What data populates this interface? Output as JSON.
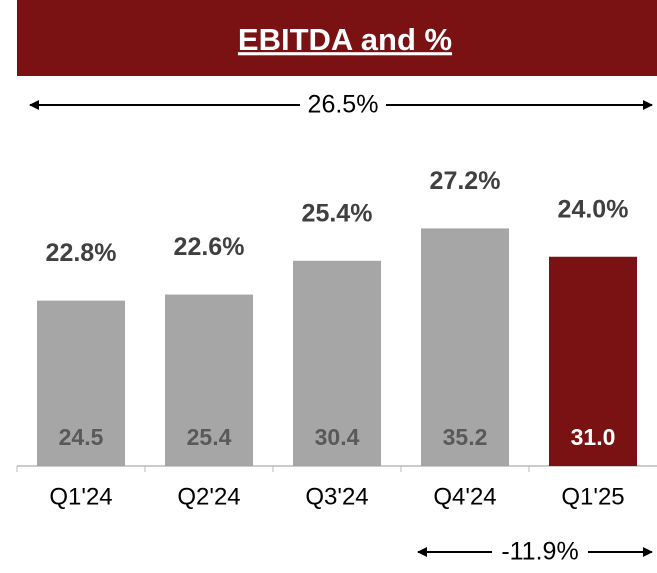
{
  "chart_data": {
    "type": "bar",
    "title": "EBITDA and %",
    "categories": [
      "Q1'24",
      "Q2'24",
      "Q3'24",
      "Q4'24",
      "Q1'25"
    ],
    "values": [
      24.5,
      25.4,
      30.4,
      35.2,
      31.0
    ],
    "value_labels": [
      "24.5",
      "25.4",
      "30.4",
      "35.2",
      "31.0"
    ],
    "margin_labels": [
      "22.8%",
      "22.6%",
      "25.4%",
      "27.2%",
      "24.0%"
    ],
    "colors": [
      "#a6a6a6",
      "#a6a6a6",
      "#a6a6a6",
      "#a6a6a6",
      "#7a1214"
    ],
    "annotations": [
      "26.5%",
      "-11.9%"
    ],
    "ylim": [
      0,
      40
    ]
  }
}
